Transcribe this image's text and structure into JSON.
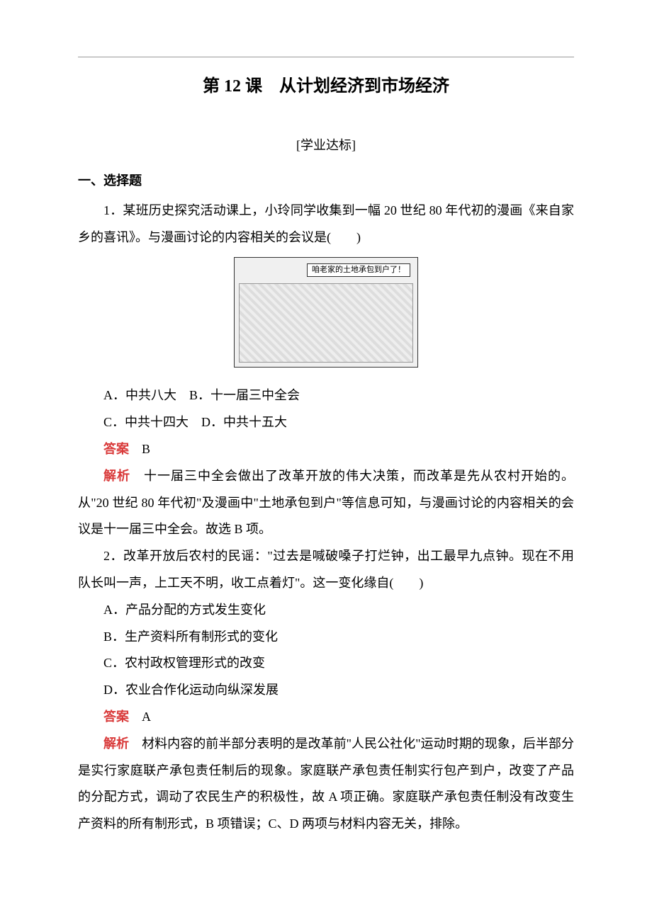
{
  "colors": {
    "text": "#000000",
    "accent": "#d93a3a",
    "rule": "#999999",
    "background": "#ffffff"
  },
  "title": "第 12 课　从计划经济到市场经济",
  "subtitle": "[学业达标]",
  "sectionHeading": "一、选择题",
  "q1": {
    "stem": "1．某班历史探究活动课上，小玲同学收集到一幅 20 世纪 80 年代初的漫画《来自家乡的喜讯》。与漫画讨论的内容相关的会议是(　　)",
    "imageCaption": "咱老家的土地承包到户了！",
    "optionsAB": "A．中共八大　B．十一届三中全会",
    "optionsCD": "C．中共十四大　D．中共十五大",
    "answerLabel": "答案",
    "answerText": "　B",
    "analysisLabel": "解析",
    "analysisText": "　十一届三中全会做出了改革开放的伟大决策，而改革是先从农村开始的。从\"20 世纪 80 年代初\"及漫画中\"土地承包到户\"等信息可知，与漫画讨论的内容相关的会议是十一届三中全会。故选 B 项。"
  },
  "q2": {
    "stem": "2．改革开放后农村的民谣：\"过去是喊破嗓子打烂钟，出工最早九点钟。现在不用队长叫一声，上工天不明，收工点着灯\"。这一变化缘自(　　)",
    "optA": "A．产品分配的方式发生变化",
    "optB": "B．生产资料所有制形式的变化",
    "optC": "C．农村政权管理形式的改变",
    "optD": "D．农业合作化运动向纵深发展",
    "answerLabel": "答案",
    "answerText": "　A",
    "analysisLabel": "解析",
    "analysisText": "　材料内容的前半部分表明的是改革前\"人民公社化\"运动时期的现象，后半部分是实行家庭联产承包责任制后的现象。家庭联产承包责任制实行包产到户，改变了产品的分配方式，调动了农民生产的积极性，故 A 项正确。家庭联产承包责任制没有改变生产资料的所有制形式，B 项错误；C、D 两项与材料内容无关，排除。"
  }
}
